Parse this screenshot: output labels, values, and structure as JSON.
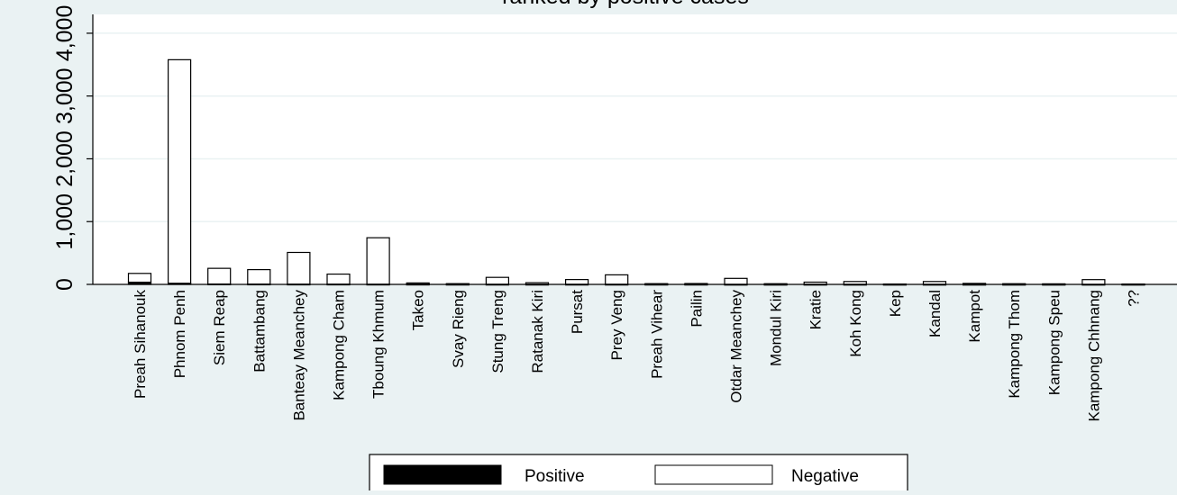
{
  "chart_data": {
    "type": "bar",
    "stacked": true,
    "title": "ranked by positive cases",
    "xlabel": "",
    "ylabel": "",
    "ylim": [
      0,
      4300
    ],
    "yticks": [
      0,
      1000,
      2000,
      3000,
      4000
    ],
    "ytick_labels": [
      "0",
      "1,000",
      "2,000",
      "3,000",
      "4,000"
    ],
    "grid": true,
    "legend_position": "bottom",
    "categories": [
      "Preah Sihanouk",
      "Phnom Penh",
      "Siem Reap",
      "Battambang",
      "Banteay Meanchey",
      "Kampong Cham",
      "Tboung Khmum",
      "Takeo",
      "Svay Rieng",
      "Stung Treng",
      "Ratanak Kiri",
      "Pursat",
      "Prey Veng",
      "Preah Vihear",
      "Pailin",
      "Otdar Meanchey",
      "Mondul Kiri",
      "Kratie",
      "Koh Kong",
      "Kep",
      "Kandal",
      "Kampot",
      "Kampong Thom",
      "Kampong Speu",
      "Kampong Chhnang",
      "??"
    ],
    "series": [
      {
        "name": "Positive",
        "color": "#000000",
        "values": [
          35,
          18,
          6,
          5,
          4,
          4,
          3,
          3,
          2,
          2,
          2,
          2,
          2,
          2,
          2,
          1,
          1,
          1,
          1,
          1,
          1,
          1,
          1,
          1,
          1,
          1
        ]
      },
      {
        "name": "Negative",
        "color": "#ffffff",
        "values": [
          140,
          3560,
          250,
          230,
          505,
          160,
          740,
          20,
          10,
          110,
          25,
          75,
          150,
          10,
          12,
          95,
          10,
          35,
          45,
          5,
          45,
          15,
          10,
          8,
          75,
          5
        ]
      }
    ]
  }
}
